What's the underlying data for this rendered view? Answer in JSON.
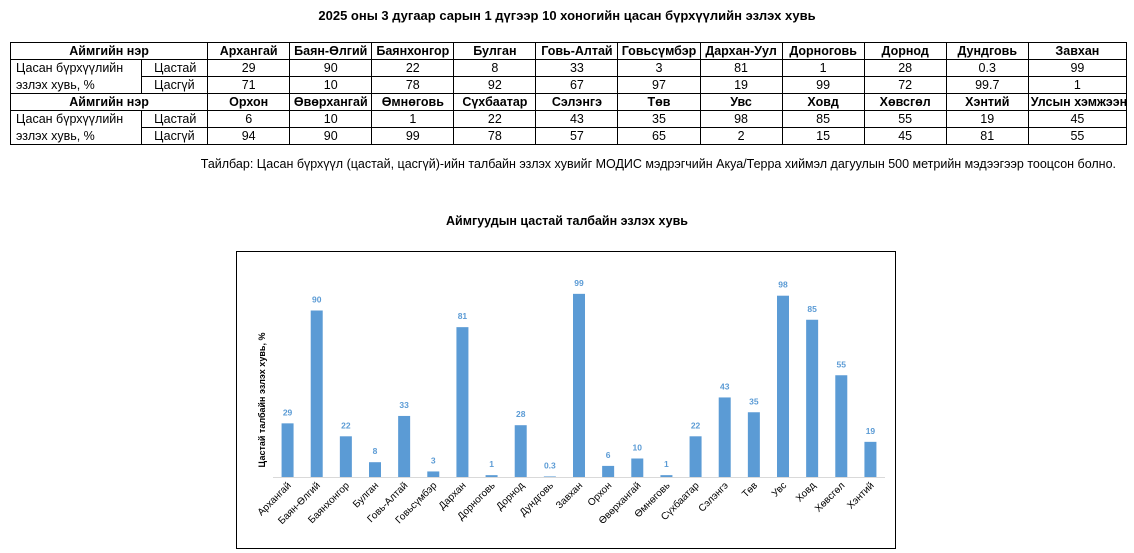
{
  "title": "2025 оны 3 дугаар сарын 1 дүгээр 10 хоногийн цасан бүрхүүлийн эзлэх хувь",
  "table": {
    "header_label": "Аймгийн нэр",
    "row_label_line1": "Цасан бүрхүүлийн",
    "row_label_line2": "эзлэх хувь, %",
    "snowy_label": "Цастай",
    "snowless_label": "Цасгүй",
    "block1": {
      "names": [
        "Архангай",
        "Баян-Өлгий",
        "Баянхонгор",
        "Булган",
        "Говь-Алтай",
        "Говьсүмбэр",
        "Дархан-Уул",
        "Дорноговь",
        "Дорнод",
        "Дундговь",
        "Завхан"
      ],
      "snowy": [
        "29",
        "90",
        "22",
        "8",
        "33",
        "3",
        "81",
        "1",
        "28",
        "0.3",
        "99"
      ],
      "snowless": [
        "71",
        "10",
        "78",
        "92",
        "67",
        "97",
        "19",
        "99",
        "72",
        "99.7",
        "1"
      ]
    },
    "block2": {
      "names": [
        "Орхон",
        "Өвөрхангай",
        "Өмнөговь",
        "Сүхбаатар",
        "Сэлэнгэ",
        "Төв",
        "Увс",
        "Ховд",
        "Хөвсгөл",
        "Хэнтий",
        "Улсын хэмжээнд"
      ],
      "snowy": [
        "6",
        "10",
        "1",
        "22",
        "43",
        "35",
        "98",
        "85",
        "55",
        "19",
        "45"
      ],
      "snowless": [
        "94",
        "90",
        "99",
        "78",
        "57",
        "65",
        "2",
        "15",
        "45",
        "81",
        "55"
      ]
    }
  },
  "note": "Тайлбар: Цасан бүрхүүл (цастай, цасгүй)-ийн талбайн эзлэх хувийг МОДИС мэдрэгчийн Акуа/Терра хиймэл дагуулын 500 метрийн мэдээгээр тооцсон болно.",
  "chart_data": {
    "type": "bar",
    "title": "Аймгуудын цастай талбайн эзлэх хувь",
    "ylabel": "Цастай талбайн эзлэх хувь, %",
    "xlabel": "",
    "ylim": [
      0,
      100
    ],
    "grid": false,
    "bar_color": "#5b9bd5",
    "label_color": "#5b9bd5",
    "categories": [
      "Архангай",
      "Баян-Өлгий",
      "Баянхонгор",
      "Булган",
      "Говь-Алтай",
      "Говьсүмбэр",
      "Дархан",
      "Дорноговь",
      "Дорнод",
      "Дундговь",
      "Завхан",
      "Орхон",
      "Өвөрхангай",
      "Өмнөговь",
      "Сүхбаатар",
      "Сэлэнгэ",
      "Төв",
      "Увс",
      "Ховд",
      "Хөвсгөл",
      "Хэнтий"
    ],
    "values": [
      29,
      90,
      22,
      8,
      33,
      3,
      81,
      1,
      28,
      0.3,
      99,
      6,
      10,
      1,
      22,
      43,
      35,
      98,
      85,
      55,
      19
    ]
  }
}
